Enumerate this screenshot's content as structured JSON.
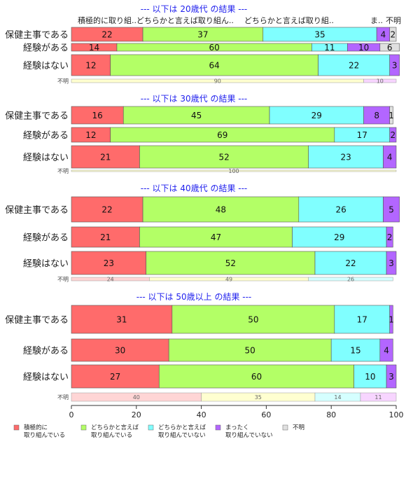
{
  "chart_data": {
    "type": "bar",
    "orientation": "horizontal",
    "stacked": "percent",
    "xlim": [
      0,
      100
    ],
    "x_ticks": [
      "0",
      "20",
      "40",
      "60",
      "80",
      "100"
    ],
    "categories": [
      "積極的に取り組んでいる",
      "どちらかと言えば取り組んでいる",
      "どちらかと言えば取り組んでいない",
      "まったく取り組んでいない",
      "不明"
    ],
    "colors": [
      "#ff6b6b",
      "#b3ff66",
      "#80ffff",
      "#b366ff",
      "#e0e0e0"
    ],
    "light_colors": [
      "#ffd5d5",
      "#ffffd0",
      "#d5ffff",
      "#f7d5ff",
      "#eeeeee"
    ],
    "column_headers": [
      "積極的に取り組..",
      "どちらかと言えば取り組ん..",
      "どちらかと言えば取り組..",
      "ま..",
      "不明"
    ],
    "legend": {
      "position": "bottom",
      "items": [
        {
          "line1": "積極的に",
          "line2": "取り組んでいる"
        },
        {
          "line1": "どちらかと言えば",
          "line2": "取り組んでいる"
        },
        {
          "line1": "どちらかと言えば",
          "line2": "取り組んでいない"
        },
        {
          "line1": "まったく",
          "line2": "取り組んでいない"
        },
        {
          "line1": "不明",
          "line2": ""
        }
      ]
    },
    "panels": [
      {
        "title": "--- 以下は 20歳代 の結果 ---",
        "rows": [
          {
            "label": "保健主事である",
            "values": [
              22,
              37,
              35,
              4,
              2
            ]
          },
          {
            "label": "経験がある",
            "values": [
              14,
              60,
              11,
              10,
              6
            ]
          },
          {
            "label": "経験はない",
            "values": [
              12,
              64,
              22,
              3,
              0
            ]
          }
        ],
        "fumei": {
          "label": "不明",
          "values": [
            0,
            90,
            0,
            10,
            0
          ],
          "labels": [
            "",
            "90",
            "",
            "10",
            ""
          ]
        }
      },
      {
        "title": "--- 以下は 30歳代 の結果 ---",
        "rows": [
          {
            "label": "保健主事である",
            "values": [
              16,
              45,
              29,
              8,
              1
            ]
          },
          {
            "label": "経験がある",
            "values": [
              12,
              69,
              17,
              2,
              0
            ]
          },
          {
            "label": "経験はない",
            "values": [
              21,
              52,
              23,
              4,
              0
            ]
          }
        ],
        "fumei": {
          "label": "不明",
          "values": [
            0,
            100,
            0,
            0,
            0
          ],
          "labels": [
            "",
            "100",
            "",
            "",
            ""
          ]
        }
      },
      {
        "title": "--- 以下は 40歳代 の結果 ---",
        "rows": [
          {
            "label": "保健主事である",
            "values": [
              22,
              48,
              26,
              5,
              0
            ]
          },
          {
            "label": "経験がある",
            "values": [
              21,
              47,
              29,
              2,
              0
            ]
          },
          {
            "label": "経験はない",
            "values": [
              23,
              52,
              22,
              3,
              0
            ]
          }
        ],
        "fumei": {
          "label": "不明",
          "values": [
            24,
            49,
            26,
            0,
            0
          ],
          "labels": [
            "24",
            "49",
            "26",
            "",
            ""
          ]
        }
      },
      {
        "title": "--- 以下は 50歳以上 の結果 ---",
        "rows": [
          {
            "label": "保健主事である",
            "values": [
              31,
              50,
              17,
              1,
              0
            ]
          },
          {
            "label": "経験がある",
            "values": [
              30,
              50,
              15,
              4,
              0
            ]
          },
          {
            "label": "経験はない",
            "values": [
              27,
              60,
              10,
              3,
              0
            ]
          }
        ],
        "fumei": {
          "label": "不明",
          "values": [
            40,
            35,
            14,
            11,
            0
          ],
          "labels": [
            "40",
            "35",
            "14",
            "11",
            ""
          ]
        }
      }
    ]
  }
}
